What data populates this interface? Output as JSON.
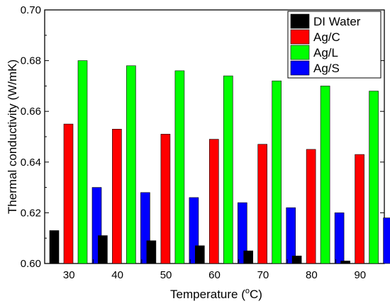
{
  "chart_data": {
    "type": "bar",
    "title": "",
    "xlabel": "Temperature (",
    "xlabel_sup": "o",
    "xlabel_tail": "C)",
    "ylabel": "Thermal conductivity (W/mK)",
    "ylim": [
      0.6,
      0.7
    ],
    "yticks": [
      "0.60",
      "0.62",
      "0.64",
      "0.66",
      "0.68",
      "0.70"
    ],
    "categories": [
      "30",
      "40",
      "50",
      "60",
      "70",
      "80",
      "90"
    ],
    "series": [
      {
        "name": "DI Water",
        "color": "#000000",
        "values": [
          0.613,
          0.611,
          0.609,
          0.607,
          0.605,
          0.603,
          0.601
        ]
      },
      {
        "name": "Ag/C",
        "color": "#ff0000",
        "values": [
          0.655,
          0.653,
          0.651,
          0.649,
          0.647,
          0.645,
          0.643
        ]
      },
      {
        "name": "Ag/L",
        "color": "#00ff00",
        "values": [
          0.68,
          0.678,
          0.676,
          0.674,
          0.672,
          0.67,
          0.668
        ]
      },
      {
        "name": "Ag/S",
        "color": "#0000ff",
        "values": [
          0.63,
          0.628,
          0.626,
          0.624,
          0.622,
          0.62,
          0.618
        ]
      }
    ],
    "legend_position": "top-right",
    "grid": false
  }
}
